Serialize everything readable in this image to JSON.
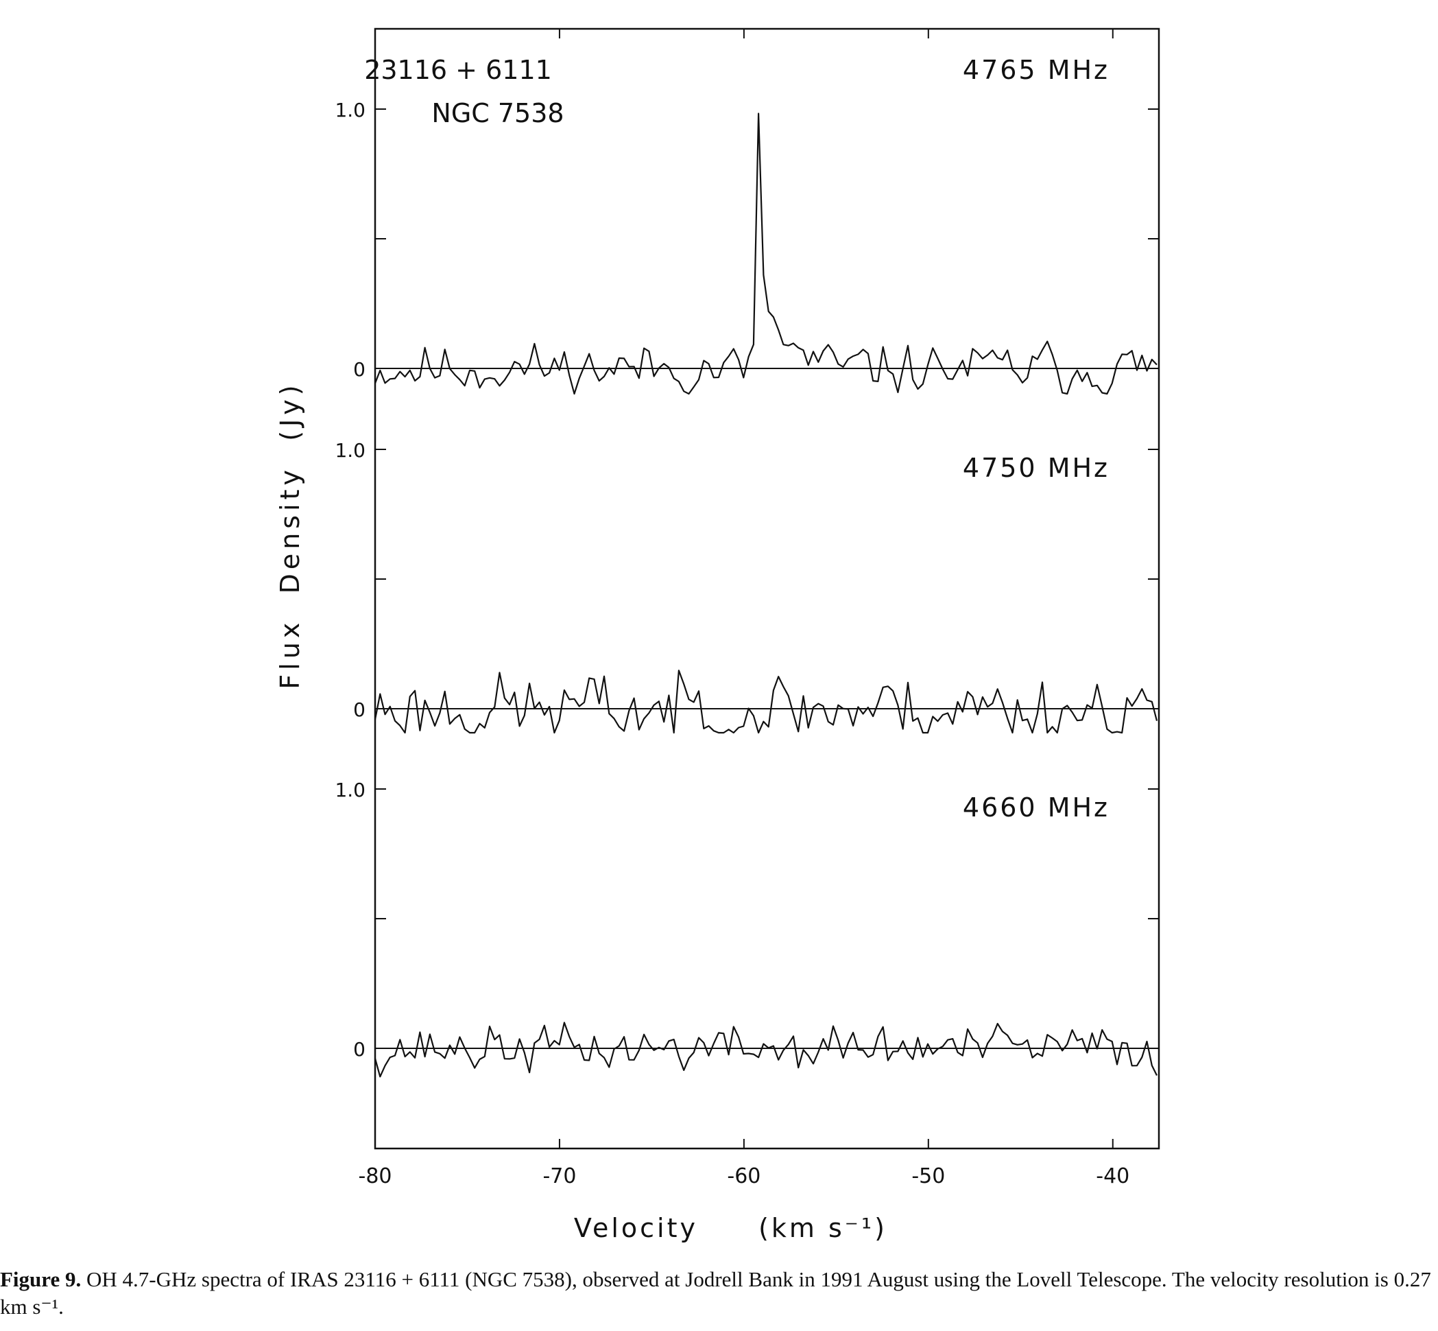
{
  "chart_data": {
    "type": "line",
    "source_label": "23116 + 6111",
    "object_label": "NGC 7538",
    "xlabel": "Velocity",
    "xlabel_unit": "(km s⁻¹)",
    "ylabel": "Flux  Density  (Jy)",
    "xlim": [
      -80,
      -37.5
    ],
    "xticks": [
      -80,
      -70,
      -60,
      -50,
      -40
    ],
    "xtick_labels": [
      "-80",
      "-70",
      "-60",
      "-50",
      "-40"
    ],
    "panels": [
      {
        "name": "4765 MHz",
        "ylim": [
          -0.3,
          1.3
        ],
        "ytick_labels": [
          {
            "value": 0,
            "label": "0"
          },
          {
            "value": 1.0,
            "label": "1.0"
          }
        ],
        "baseline": 0,
        "peak": {
          "x": -59.2,
          "y": 0.9
        },
        "rms": 0.07,
        "seed": 11
      },
      {
        "name": "4750 MHz",
        "ylim": [
          -0.3,
          1.0
        ],
        "ytick_labels": [
          {
            "value": 0,
            "label": "0"
          },
          {
            "value": 1.0,
            "label": "1.0"
          }
        ],
        "baseline": 0,
        "peak": null,
        "rms": 0.1,
        "seed": 23
      },
      {
        "name": "4660 MHz",
        "ylim": [
          -0.4,
          1.0
        ],
        "ytick_labels": [
          {
            "value": 0,
            "label": "0"
          },
          {
            "value": 1.0,
            "label": "1.0"
          }
        ],
        "baseline": 0,
        "peak": null,
        "rms": 0.065,
        "seed": 37
      }
    ]
  },
  "caption": {
    "label": "Figure 9.",
    "text": "OH 4.7-GHz spectra of IRAS 23116 + 6111 (NGC 7538), observed at Jodrell Bank in 1991 August using the Lovell Telescope. The velocity resolution is 0.27 km s⁻¹."
  }
}
